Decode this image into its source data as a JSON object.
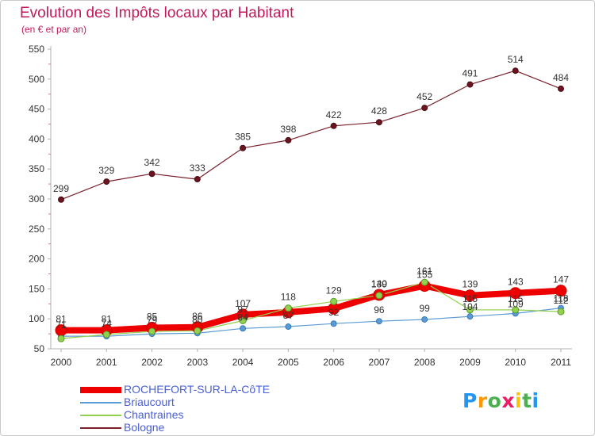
{
  "title": "Evolution des Impôts locaux par Habitant",
  "subtitle": "(en € et par an)",
  "logo": {
    "text": "Proxiti",
    "letters": [
      "P",
      "r",
      "o",
      "x",
      "i",
      "t",
      "i"
    ],
    "colors": [
      "#2196f3",
      "#ff9800",
      "#4caf50",
      "#e91e63",
      "#ffc107",
      "#4caf50",
      "#2196f3"
    ]
  },
  "chart_data": {
    "type": "line",
    "title": "Evolution des Impôts locaux par Habitant",
    "subtitle": "(en € et par an)",
    "xlabel": "",
    "ylabel": "",
    "categories": [
      "2000",
      "2001",
      "2002",
      "2003",
      "2004",
      "2005",
      "2006",
      "2007",
      "2008",
      "2009",
      "2010",
      "2011"
    ],
    "ylim": [
      50,
      550
    ],
    "yticks": [
      50,
      100,
      150,
      200,
      250,
      300,
      350,
      400,
      450,
      500,
      550
    ],
    "grid": false,
    "legend_position": "bottom-left",
    "series": [
      {
        "name": "ROCHEFORT-SUR-LA-CôTE",
        "color": "#ee0000",
        "values": [
          81,
          81,
          85,
          86,
          107,
          111,
          117,
          140,
          155,
          139,
          143,
          147
        ],
        "labels": [
          "81",
          "81",
          "85",
          "86",
          "107",
          "",
          "",
          "140",
          "155",
          "139",
          "143",
          "147"
        ]
      },
      {
        "name": "Briaucourt",
        "color": "#5b9bd5",
        "values": [
          71,
          71,
          75,
          76,
          84,
          87,
          92,
          96,
          99,
          104,
          109,
          118
        ],
        "labels": [
          "71",
          "",
          "",
          "",
          "84",
          "87",
          "92",
          "96",
          "99",
          "104",
          "109",
          "118"
        ]
      },
      {
        "name": "Chantraines",
        "color": "#92d050",
        "values": [
          67,
          74,
          79,
          80,
          97,
          118,
          129,
          139,
          161,
          115,
          115,
          112
        ],
        "labels": [
          "",
          "74",
          "79",
          "80",
          "97",
          "118",
          "129",
          "139",
          "161",
          "115",
          "115",
          "112"
        ]
      },
      {
        "name": "Bologne",
        "color": "#7b1f2b",
        "values": [
          299,
          329,
          342,
          333,
          385,
          398,
          422,
          428,
          452,
          491,
          514,
          484
        ],
        "labels": [
          "299",
          "329",
          "342",
          "333",
          "385",
          "398",
          "422",
          "428",
          "452",
          "491",
          "514",
          "484"
        ]
      }
    ]
  }
}
